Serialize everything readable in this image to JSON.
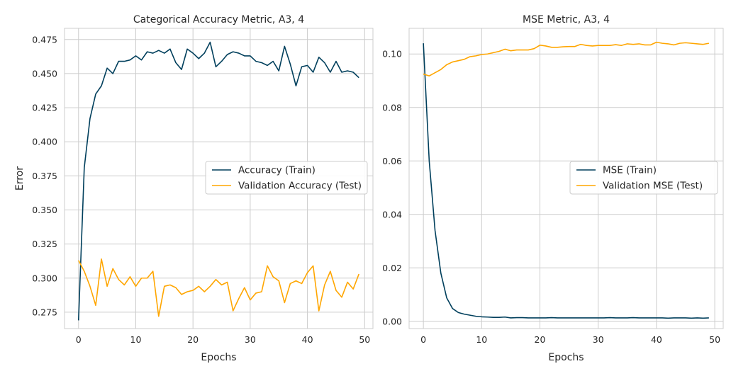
{
  "chart_data": [
    {
      "type": "line",
      "title": "Categorical Accuracy Metric, A3, 4",
      "xlabel": "Epochs",
      "ylabel": "Error",
      "xlim": [
        -2.45,
        51.45
      ],
      "ylim": [
        0.263,
        0.4832
      ],
      "xticks": [
        0,
        10,
        20,
        30,
        40,
        50
      ],
      "yticks": [
        0.275,
        0.3,
        0.325,
        0.35,
        0.375,
        0.4,
        0.425,
        0.45,
        0.475
      ],
      "ytick_labels": [
        "0.275",
        "0.300",
        "0.325",
        "0.350",
        "0.375",
        "0.400",
        "0.425",
        "0.450",
        "0.475"
      ],
      "grid": true,
      "legend_position": "center-right",
      "series": [
        {
          "name": "Accuracy (Train)",
          "color": "#003f5c",
          "values": [
            0.269,
            0.381,
            0.417,
            0.435,
            0.441,
            0.454,
            0.45,
            0.459,
            0.459,
            0.46,
            0.463,
            0.46,
            0.466,
            0.465,
            0.467,
            0.465,
            0.468,
            0.458,
            0.453,
            0.468,
            0.465,
            0.461,
            0.465,
            0.473,
            0.455,
            0.459,
            0.464,
            0.466,
            0.465,
            0.463,
            0.463,
            0.459,
            0.458,
            0.456,
            0.459,
            0.452,
            0.47,
            0.457,
            0.441,
            0.455,
            0.456,
            0.451,
            0.462,
            0.458,
            0.451,
            0.459,
            0.451,
            0.452,
            0.451,
            0.447
          ]
        },
        {
          "name": "Validation Accuracy (Test)",
          "color": "#ffa600",
          "values": [
            0.313,
            0.305,
            0.294,
            0.28,
            0.314,
            0.294,
            0.307,
            0.299,
            0.295,
            0.301,
            0.294,
            0.3,
            0.3,
            0.305,
            0.272,
            0.294,
            0.295,
            0.293,
            0.288,
            0.29,
            0.291,
            0.294,
            0.29,
            0.294,
            0.299,
            0.295,
            0.297,
            0.276,
            0.285,
            0.293,
            0.284,
            0.289,
            0.29,
            0.309,
            0.301,
            0.298,
            0.282,
            0.296,
            0.298,
            0.296,
            0.304,
            0.309,
            0.276,
            0.295,
            0.305,
            0.291,
            0.286,
            0.297,
            0.292,
            0.303
          ]
        }
      ]
    },
    {
      "type": "line",
      "title": "MSE Metric, A3, 4",
      "xlabel": "Epochs",
      "ylabel": "",
      "xlim": [
        -2.45,
        51.45
      ],
      "ylim": [
        -0.0027,
        0.1096
      ],
      "xticks": [
        0,
        10,
        20,
        30,
        40,
        50
      ],
      "yticks": [
        0.0,
        0.02,
        0.04,
        0.06,
        0.08,
        0.1
      ],
      "ytick_labels": [
        "0.00",
        "0.02",
        "0.04",
        "0.06",
        "0.08",
        "0.10"
      ],
      "grid": true,
      "legend_position": "center-right",
      "series": [
        {
          "name": "MSE (Train)",
          "color": "#003f5c",
          "values": [
            0.104,
            0.06,
            0.034,
            0.018,
            0.0088,
            0.0048,
            0.0033,
            0.0027,
            0.0023,
            0.0019,
            0.0017,
            0.0016,
            0.0015,
            0.0015,
            0.0016,
            0.0013,
            0.0014,
            0.0014,
            0.0013,
            0.0013,
            0.0013,
            0.0013,
            0.0014,
            0.0013,
            0.0013,
            0.0013,
            0.0013,
            0.0013,
            0.0013,
            0.0013,
            0.0013,
            0.0013,
            0.0014,
            0.0013,
            0.0013,
            0.0013,
            0.0014,
            0.0013,
            0.0013,
            0.0013,
            0.0013,
            0.0013,
            0.0012,
            0.0013,
            0.0013,
            0.0013,
            0.0012,
            0.0013,
            0.0012,
            0.0013
          ]
        },
        {
          "name": "Validation MSE (Test)",
          "color": "#ffa600",
          "values": [
            0.0925,
            0.0918,
            0.093,
            0.0942,
            0.096,
            0.097,
            0.0975,
            0.098,
            0.099,
            0.0993,
            0.0998,
            0.1,
            0.1005,
            0.101,
            0.1018,
            0.1012,
            0.1015,
            0.1015,
            0.1015,
            0.102,
            0.1033,
            0.103,
            0.1025,
            0.1025,
            0.1027,
            0.1028,
            0.1028,
            0.1036,
            0.1032,
            0.103,
            0.1032,
            0.1032,
            0.1032,
            0.1035,
            0.1032,
            0.1038,
            0.1036,
            0.1038,
            0.1034,
            0.1034,
            0.1044,
            0.104,
            0.1038,
            0.1034,
            0.104,
            0.1042,
            0.104,
            0.1038,
            0.1036,
            0.104
          ]
        }
      ]
    }
  ]
}
